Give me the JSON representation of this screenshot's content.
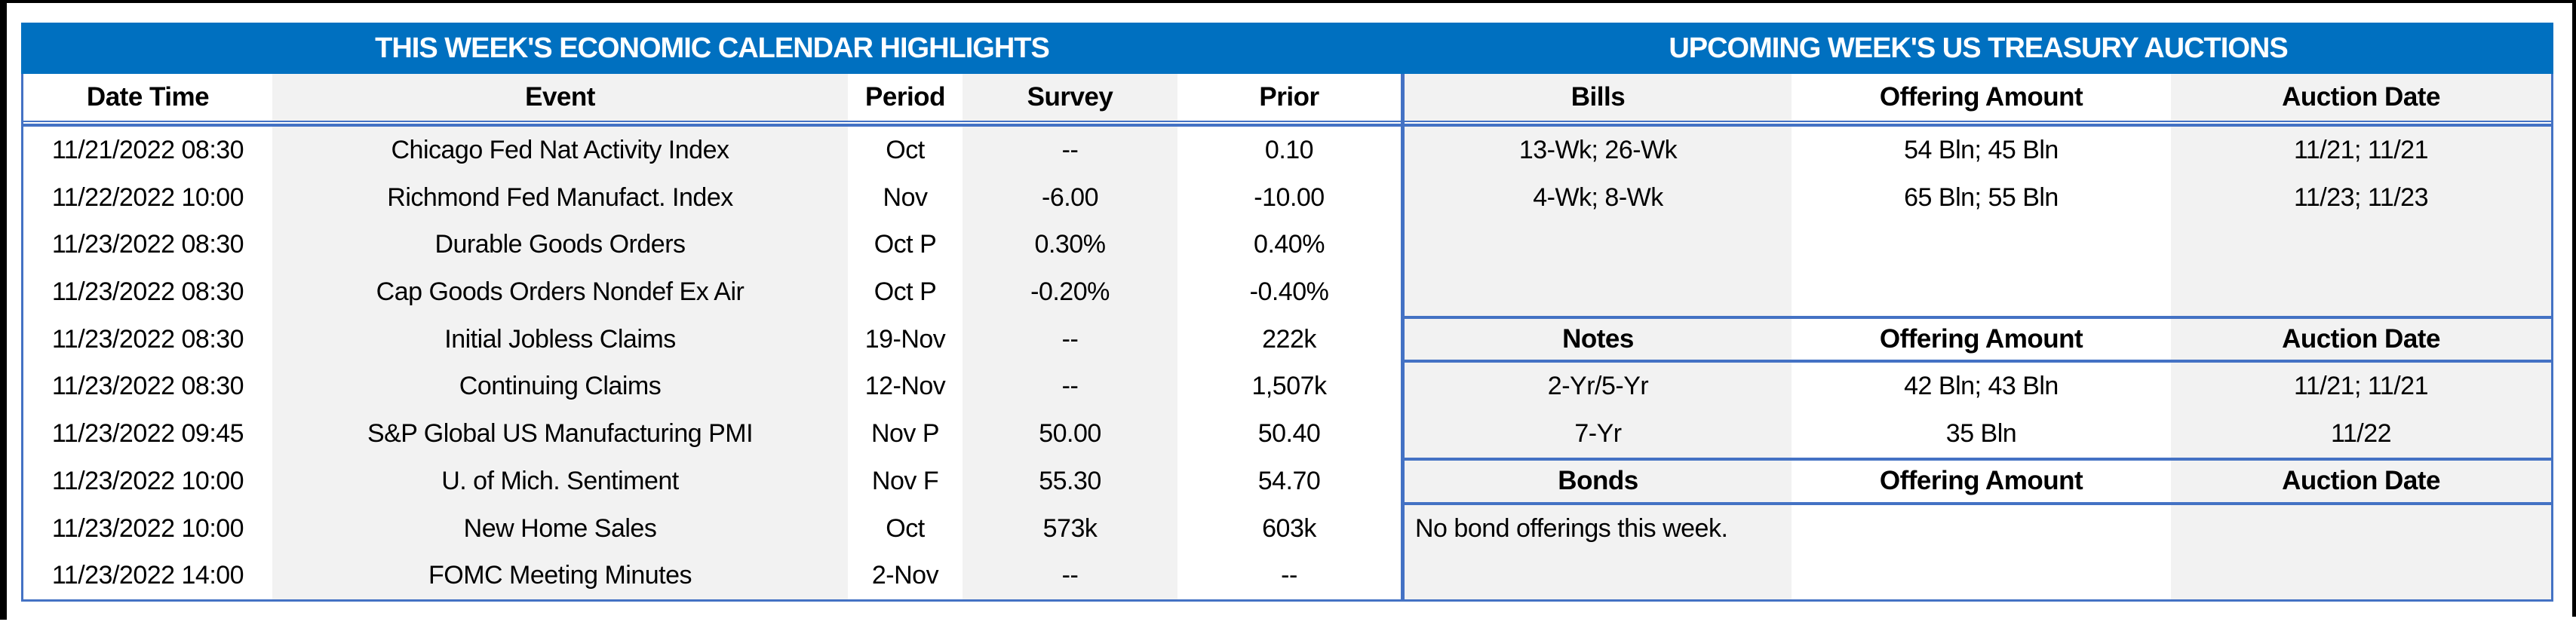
{
  "calendar": {
    "title": "THIS WEEK'S ECONOMIC CALENDAR HIGHLIGHTS",
    "columns": [
      "Date Time",
      "Event",
      "Period",
      "Survey",
      "Prior"
    ],
    "rows": [
      [
        "11/21/2022 08:30",
        "Chicago Fed Nat Activity Index",
        "Oct",
        "--",
        "0.10"
      ],
      [
        "11/22/2022 10:00",
        "Richmond Fed Manufact. Index",
        "Nov",
        "-6.00",
        "-10.00"
      ],
      [
        "11/23/2022 08:30",
        "Durable Goods Orders",
        "Oct P",
        "0.30%",
        "0.40%"
      ],
      [
        "11/23/2022 08:30",
        "Cap Goods Orders Nondef Ex Air",
        "Oct P",
        "-0.20%",
        "-0.40%"
      ],
      [
        "11/23/2022 08:30",
        "Initial Jobless Claims",
        "19-Nov",
        "--",
        "222k"
      ],
      [
        "11/23/2022 08:30",
        "Continuing Claims",
        "12-Nov",
        "--",
        "1,507k"
      ],
      [
        "11/23/2022 09:45",
        "S&P Global US Manufacturing PMI",
        "Nov P",
        "50.00",
        "50.40"
      ],
      [
        "11/23/2022 10:00",
        "U. of Mich. Sentiment",
        "Nov F",
        "55.30",
        "54.70"
      ],
      [
        "11/23/2022 10:00",
        "New Home Sales",
        "Oct",
        "573k",
        "603k"
      ],
      [
        "11/23/2022 14:00",
        "FOMC Meeting Minutes",
        "2-Nov",
        "--",
        "--"
      ]
    ]
  },
  "auctions": {
    "title": "UPCOMING WEEK'S US TREASURY AUCTIONS",
    "bills": {
      "columns": [
        "Bills",
        "Offering Amount",
        "Auction Date"
      ],
      "rows": [
        [
          "13-Wk; 26-Wk",
          "54 Bln; 45 Bln",
          "11/21; 11/21"
        ],
        [
          "4-Wk; 8-Wk",
          "65 Bln; 55 Bln",
          "11/23; 11/23"
        ]
      ]
    },
    "notes": {
      "columns": [
        "Notes",
        "Offering Amount",
        "Auction Date"
      ],
      "rows": [
        [
          "2-Yr/5-Yr",
          "42 Bln; 43 Bln",
          "11/21; 11/21"
        ],
        [
          "7-Yr",
          "35 Bln",
          "11/22"
        ]
      ]
    },
    "bonds": {
      "columns": [
        "Bonds",
        "Offering Amount",
        "Auction Date"
      ],
      "note": "No bond offerings this week."
    }
  },
  "colors": {
    "title_bar_bg": "#0070C0",
    "title_text": "#FFFFFF",
    "table_border": "#4472C4",
    "column_stripe": "#F2F2F2",
    "frame": "#000000"
  }
}
